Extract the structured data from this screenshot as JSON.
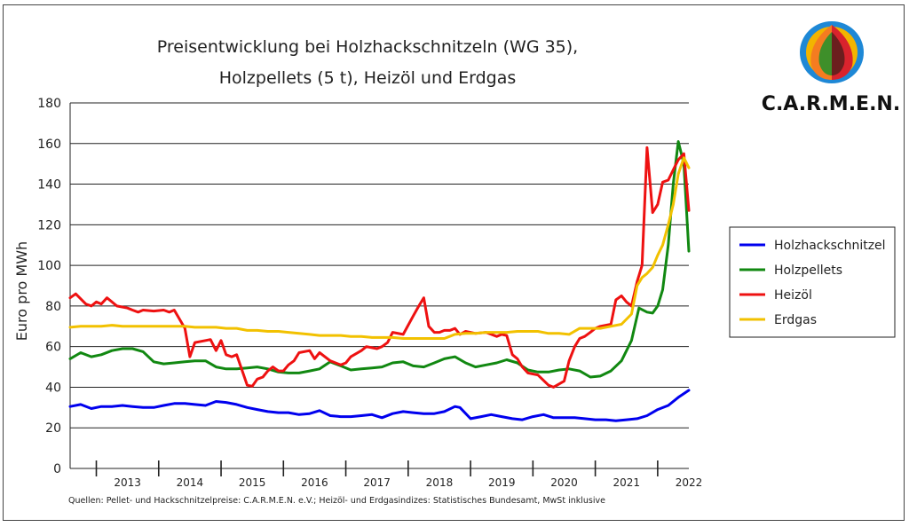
{
  "chart_data": {
    "type": "line",
    "title_lines": [
      "Preisentwicklung bei Holzhackschnitzeln (WG 35),",
      "Holzpellets (5 t), Heizöl und Erdgas"
    ],
    "ylabel": "Euro pro MWh",
    "ylim": [
      0,
      180
    ],
    "yticks": [
      "0",
      "20",
      "40",
      "60",
      "80",
      "100",
      "120",
      "140",
      "160",
      "180"
    ],
    "xlim": [
      2012.58,
      2022.5
    ],
    "years": [
      "2013",
      "2014",
      "2015",
      "2016",
      "2017",
      "2018",
      "2019",
      "2020",
      "2021",
      "2022"
    ],
    "grid": "horizontal",
    "legend_position": "right",
    "source": "Quellen: Pellet- und Hackschnitzelpreise: C.A.R.M.E.N. e.V.; Heizöl- und Erdgasindizes: Statistisches Bundesamt, MwSt inklusive",
    "series": [
      {
        "name": "Holzhackschnitzel",
        "color": "#0000ee",
        "points": [
          [
            2012.58,
            30.5
          ],
          [
            2012.75,
            31.5
          ],
          [
            2012.92,
            29.5
          ],
          [
            2013.08,
            30.5
          ],
          [
            2013.25,
            30.5
          ],
          [
            2013.42,
            31
          ],
          [
            2013.58,
            30.5
          ],
          [
            2013.75,
            30
          ],
          [
            2013.92,
            30
          ],
          [
            2014.08,
            31
          ],
          [
            2014.25,
            32
          ],
          [
            2014.42,
            32
          ],
          [
            2014.58,
            31.5
          ],
          [
            2014.75,
            31
          ],
          [
            2014.92,
            33
          ],
          [
            2015.08,
            32.5
          ],
          [
            2015.25,
            31.5
          ],
          [
            2015.42,
            30
          ],
          [
            2015.58,
            29
          ],
          [
            2015.75,
            28
          ],
          [
            2015.92,
            27.5
          ],
          [
            2016.08,
            27.5
          ],
          [
            2016.25,
            26.5
          ],
          [
            2016.42,
            27
          ],
          [
            2016.58,
            28.5
          ],
          [
            2016.75,
            26
          ],
          [
            2016.92,
            25.5
          ],
          [
            2017.08,
            25.5
          ],
          [
            2017.25,
            26
          ],
          [
            2017.42,
            26.5
          ],
          [
            2017.58,
            25
          ],
          [
            2017.75,
            27
          ],
          [
            2017.92,
            28
          ],
          [
            2018.08,
            27.5
          ],
          [
            2018.25,
            27
          ],
          [
            2018.42,
            27
          ],
          [
            2018.58,
            28
          ],
          [
            2018.75,
            30.5
          ],
          [
            2018.83,
            30
          ],
          [
            2019.0,
            24.5
          ],
          [
            2019.17,
            25.5
          ],
          [
            2019.33,
            26.5
          ],
          [
            2019.5,
            25.5
          ],
          [
            2019.67,
            24.5
          ],
          [
            2019.83,
            24
          ],
          [
            2020.0,
            25.5
          ],
          [
            2020.17,
            26.5
          ],
          [
            2020.33,
            25
          ],
          [
            2020.5,
            25
          ],
          [
            2020.67,
            25
          ],
          [
            2020.83,
            24.5
          ],
          [
            2021.0,
            24
          ],
          [
            2021.17,
            24
          ],
          [
            2021.33,
            23.5
          ],
          [
            2021.5,
            24
          ],
          [
            2021.67,
            24.5
          ],
          [
            2021.83,
            26
          ],
          [
            2022.0,
            29
          ],
          [
            2022.17,
            31
          ],
          [
            2022.33,
            35
          ],
          [
            2022.5,
            38.5
          ]
        ]
      },
      {
        "name": "Holzpellets",
        "color": "#118811",
        "points": [
          [
            2012.58,
            54
          ],
          [
            2012.75,
            57
          ],
          [
            2012.92,
            55
          ],
          [
            2013.08,
            56
          ],
          [
            2013.25,
            58
          ],
          [
            2013.42,
            59
          ],
          [
            2013.58,
            59
          ],
          [
            2013.75,
            57.5
          ],
          [
            2013.92,
            52.5
          ],
          [
            2014.08,
            51.5
          ],
          [
            2014.25,
            52
          ],
          [
            2014.42,
            52.5
          ],
          [
            2014.58,
            53
          ],
          [
            2014.75,
            53
          ],
          [
            2014.92,
            50
          ],
          [
            2015.08,
            49
          ],
          [
            2015.25,
            49
          ],
          [
            2015.42,
            49.5
          ],
          [
            2015.58,
            50
          ],
          [
            2015.75,
            49
          ],
          [
            2015.92,
            47.5
          ],
          [
            2016.08,
            47
          ],
          [
            2016.25,
            47
          ],
          [
            2016.42,
            48
          ],
          [
            2016.58,
            49
          ],
          [
            2016.75,
            52.5
          ],
          [
            2016.92,
            50.5
          ],
          [
            2017.08,
            48.5
          ],
          [
            2017.25,
            49
          ],
          [
            2017.42,
            49.5
          ],
          [
            2017.58,
            50
          ],
          [
            2017.75,
            52
          ],
          [
            2017.92,
            52.5
          ],
          [
            2018.08,
            50.5
          ],
          [
            2018.25,
            50
          ],
          [
            2018.42,
            52
          ],
          [
            2018.58,
            54
          ],
          [
            2018.75,
            55
          ],
          [
            2018.92,
            52
          ],
          [
            2019.08,
            50
          ],
          [
            2019.25,
            51
          ],
          [
            2019.42,
            52
          ],
          [
            2019.58,
            53.5
          ],
          [
            2019.75,
            52
          ],
          [
            2019.92,
            48.5
          ],
          [
            2020.08,
            47.5
          ],
          [
            2020.25,
            47.5
          ],
          [
            2020.42,
            48.5
          ],
          [
            2020.58,
            49
          ],
          [
            2020.75,
            48
          ],
          [
            2020.92,
            45
          ],
          [
            2021.08,
            45.5
          ],
          [
            2021.25,
            48
          ],
          [
            2021.42,
            53
          ],
          [
            2021.58,
            63
          ],
          [
            2021.7,
            79
          ],
          [
            2021.83,
            77
          ],
          [
            2021.92,
            76.5
          ],
          [
            2022.0,
            80
          ],
          [
            2022.08,
            88
          ],
          [
            2022.17,
            110
          ],
          [
            2022.25,
            140
          ],
          [
            2022.33,
            161
          ],
          [
            2022.42,
            150
          ],
          [
            2022.5,
            107
          ]
        ]
      },
      {
        "name": "Heizöl",
        "color": "#ee1111",
        "points": [
          [
            2012.58,
            84
          ],
          [
            2012.67,
            86
          ],
          [
            2012.83,
            81
          ],
          [
            2012.92,
            80
          ],
          [
            2013.0,
            82
          ],
          [
            2013.08,
            81
          ],
          [
            2013.17,
            84
          ],
          [
            2013.33,
            80
          ],
          [
            2013.5,
            79
          ],
          [
            2013.58,
            78
          ],
          [
            2013.67,
            77
          ],
          [
            2013.75,
            78
          ],
          [
            2013.92,
            77.5
          ],
          [
            2014.08,
            78
          ],
          [
            2014.17,
            77
          ],
          [
            2014.25,
            78
          ],
          [
            2014.42,
            69
          ],
          [
            2014.5,
            55
          ],
          [
            2014.58,
            62
          ],
          [
            2014.75,
            63
          ],
          [
            2014.83,
            63.5
          ],
          [
            2014.92,
            58
          ],
          [
            2015.0,
            63
          ],
          [
            2015.08,
            56
          ],
          [
            2015.17,
            55
          ],
          [
            2015.25,
            56
          ],
          [
            2015.42,
            41
          ],
          [
            2015.5,
            40.5
          ],
          [
            2015.58,
            44
          ],
          [
            2015.67,
            45
          ],
          [
            2015.75,
            48
          ],
          [
            2015.83,
            50
          ],
          [
            2015.92,
            48
          ],
          [
            2016.0,
            48
          ],
          [
            2016.08,
            51
          ],
          [
            2016.17,
            53
          ],
          [
            2016.25,
            57
          ],
          [
            2016.42,
            58
          ],
          [
            2016.5,
            54
          ],
          [
            2016.58,
            57
          ],
          [
            2016.75,
            53
          ],
          [
            2016.92,
            51
          ],
          [
            2017.0,
            52
          ],
          [
            2017.08,
            55
          ],
          [
            2017.25,
            58
          ],
          [
            2017.33,
            60
          ],
          [
            2017.5,
            59
          ],
          [
            2017.58,
            60
          ],
          [
            2017.67,
            62
          ],
          [
            2017.75,
            67
          ],
          [
            2017.92,
            66
          ],
          [
            2018.08,
            75
          ],
          [
            2018.17,
            80
          ],
          [
            2018.25,
            84
          ],
          [
            2018.33,
            70
          ],
          [
            2018.42,
            67
          ],
          [
            2018.5,
            67
          ],
          [
            2018.58,
            68
          ],
          [
            2018.67,
            68
          ],
          [
            2018.75,
            69
          ],
          [
            2018.83,
            66
          ],
          [
            2018.92,
            67.5
          ],
          [
            2019.08,
            66.5
          ],
          [
            2019.25,
            67
          ],
          [
            2019.42,
            65
          ],
          [
            2019.5,
            66
          ],
          [
            2019.58,
            65.5
          ],
          [
            2019.67,
            56
          ],
          [
            2019.75,
            54
          ],
          [
            2019.83,
            50
          ],
          [
            2019.92,
            47
          ],
          [
            2020.08,
            46
          ],
          [
            2020.25,
            41
          ],
          [
            2020.33,
            40
          ],
          [
            2020.5,
            43
          ],
          [
            2020.58,
            53
          ],
          [
            2020.67,
            60
          ],
          [
            2020.75,
            64
          ],
          [
            2020.83,
            65
          ],
          [
            2020.92,
            67
          ],
          [
            2021.0,
            69
          ],
          [
            2021.08,
            70
          ],
          [
            2021.25,
            71
          ],
          [
            2021.33,
            83
          ],
          [
            2021.42,
            85
          ],
          [
            2021.5,
            82
          ],
          [
            2021.58,
            80
          ],
          [
            2021.67,
            92
          ],
          [
            2021.75,
            100
          ],
          [
            2021.83,
            158
          ],
          [
            2021.92,
            126
          ],
          [
            2022.0,
            130
          ],
          [
            2022.08,
            141
          ],
          [
            2022.17,
            142
          ],
          [
            2022.25,
            147
          ],
          [
            2022.33,
            152
          ],
          [
            2022.42,
            155
          ],
          [
            2022.5,
            127
          ]
        ]
      },
      {
        "name": "Erdgas",
        "color": "#f2c100",
        "points": [
          [
            2012.58,
            69.5
          ],
          [
            2012.75,
            70
          ],
          [
            2012.92,
            70
          ],
          [
            2013.08,
            70
          ],
          [
            2013.25,
            70.5
          ],
          [
            2013.42,
            70
          ],
          [
            2013.58,
            70
          ],
          [
            2013.75,
            70
          ],
          [
            2013.92,
            70
          ],
          [
            2014.08,
            70
          ],
          [
            2014.25,
            70
          ],
          [
            2014.42,
            70
          ],
          [
            2014.58,
            69.5
          ],
          [
            2014.75,
            69.5
          ],
          [
            2014.92,
            69.5
          ],
          [
            2015.08,
            69
          ],
          [
            2015.25,
            69
          ],
          [
            2015.42,
            68
          ],
          [
            2015.58,
            68
          ],
          [
            2015.75,
            67.5
          ],
          [
            2015.92,
            67.5
          ],
          [
            2016.08,
            67
          ],
          [
            2016.25,
            66.5
          ],
          [
            2016.42,
            66
          ],
          [
            2016.58,
            65.5
          ],
          [
            2016.75,
            65.5
          ],
          [
            2016.92,
            65.5
          ],
          [
            2017.08,
            65
          ],
          [
            2017.25,
            65
          ],
          [
            2017.42,
            64.5
          ],
          [
            2017.58,
            64.5
          ],
          [
            2017.75,
            64.5
          ],
          [
            2017.92,
            64
          ],
          [
            2018.08,
            64
          ],
          [
            2018.25,
            64
          ],
          [
            2018.42,
            64
          ],
          [
            2018.58,
            64
          ],
          [
            2018.75,
            66
          ],
          [
            2018.92,
            66.5
          ],
          [
            2019.08,
            66.5
          ],
          [
            2019.25,
            67
          ],
          [
            2019.42,
            67
          ],
          [
            2019.58,
            67
          ],
          [
            2019.75,
            67.5
          ],
          [
            2019.92,
            67.5
          ],
          [
            2020.08,
            67.5
          ],
          [
            2020.25,
            66.5
          ],
          [
            2020.42,
            66.5
          ],
          [
            2020.58,
            66
          ],
          [
            2020.75,
            69
          ],
          [
            2020.92,
            69
          ],
          [
            2021.08,
            69
          ],
          [
            2021.25,
            70
          ],
          [
            2021.42,
            71
          ],
          [
            2021.58,
            76
          ],
          [
            2021.67,
            90
          ],
          [
            2021.75,
            94
          ],
          [
            2021.83,
            96
          ],
          [
            2021.92,
            99
          ],
          [
            2022.0,
            105
          ],
          [
            2022.08,
            110
          ],
          [
            2022.17,
            120
          ],
          [
            2022.25,
            130
          ],
          [
            2022.33,
            145
          ],
          [
            2022.42,
            153
          ],
          [
            2022.5,
            148
          ]
        ]
      }
    ]
  },
  "logo": {
    "text": "C.A.R.M.E.N."
  }
}
